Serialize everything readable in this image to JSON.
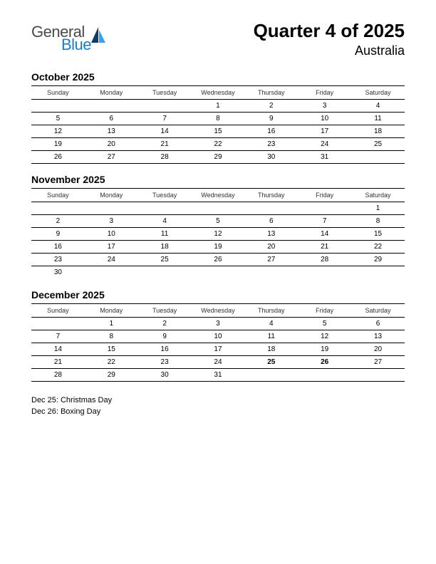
{
  "logo": {
    "general": "General",
    "blue": "Blue"
  },
  "header": {
    "title": "Quarter 4 of 2025",
    "subtitle": "Australia"
  },
  "weekdays": [
    "Sunday",
    "Monday",
    "Tuesday",
    "Wednesday",
    "Thursday",
    "Friday",
    "Saturday"
  ],
  "colors": {
    "text": "#000000",
    "holiday": "#cc0000",
    "logo_gray": "#4a4a4a",
    "logo_blue": "#1e7bc4",
    "sail_dark": "#0d3b6b",
    "sail_light": "#3aa0e8",
    "border": "#000000",
    "background": "#ffffff"
  },
  "fonts": {
    "title_size_pt": 26,
    "subtitle_size_pt": 18,
    "month_title_size_pt": 14,
    "weekday_size_pt": 9,
    "day_size_pt": 10,
    "holiday_list_size_pt": 11
  },
  "months": [
    {
      "title": "October 2025",
      "weeks": [
        [
          "",
          "",
          "",
          "1",
          "2",
          "3",
          "4"
        ],
        [
          "5",
          "6",
          "7",
          "8",
          "9",
          "10",
          "11"
        ],
        [
          "12",
          "13",
          "14",
          "15",
          "16",
          "17",
          "18"
        ],
        [
          "19",
          "20",
          "21",
          "22",
          "23",
          "24",
          "25"
        ],
        [
          "26",
          "27",
          "28",
          "29",
          "30",
          "31",
          ""
        ]
      ],
      "holidays": [],
      "last_row_no_border": false
    },
    {
      "title": "November 2025",
      "weeks": [
        [
          "",
          "",
          "",
          "",
          "",
          "",
          "1"
        ],
        [
          "2",
          "3",
          "4",
          "5",
          "6",
          "7",
          "8"
        ],
        [
          "9",
          "10",
          "11",
          "12",
          "13",
          "14",
          "15"
        ],
        [
          "16",
          "17",
          "18",
          "19",
          "20",
          "21",
          "22"
        ],
        [
          "23",
          "24",
          "25",
          "26",
          "27",
          "28",
          "29"
        ],
        [
          "30",
          "",
          "",
          "",
          "",
          "",
          ""
        ]
      ],
      "holidays": [],
      "last_row_no_border": true
    },
    {
      "title": "December 2025",
      "weeks": [
        [
          "",
          "1",
          "2",
          "3",
          "4",
          "5",
          "6"
        ],
        [
          "7",
          "8",
          "9",
          "10",
          "11",
          "12",
          "13"
        ],
        [
          "14",
          "15",
          "16",
          "17",
          "18",
          "19",
          "20"
        ],
        [
          "21",
          "22",
          "23",
          "24",
          "25",
          "26",
          "27"
        ],
        [
          "28",
          "29",
          "30",
          "31",
          "",
          "",
          ""
        ]
      ],
      "holidays": [
        "25",
        "26"
      ],
      "last_row_no_border": false
    }
  ],
  "holiday_list": [
    "Dec 25: Christmas Day",
    "Dec 26: Boxing Day"
  ]
}
